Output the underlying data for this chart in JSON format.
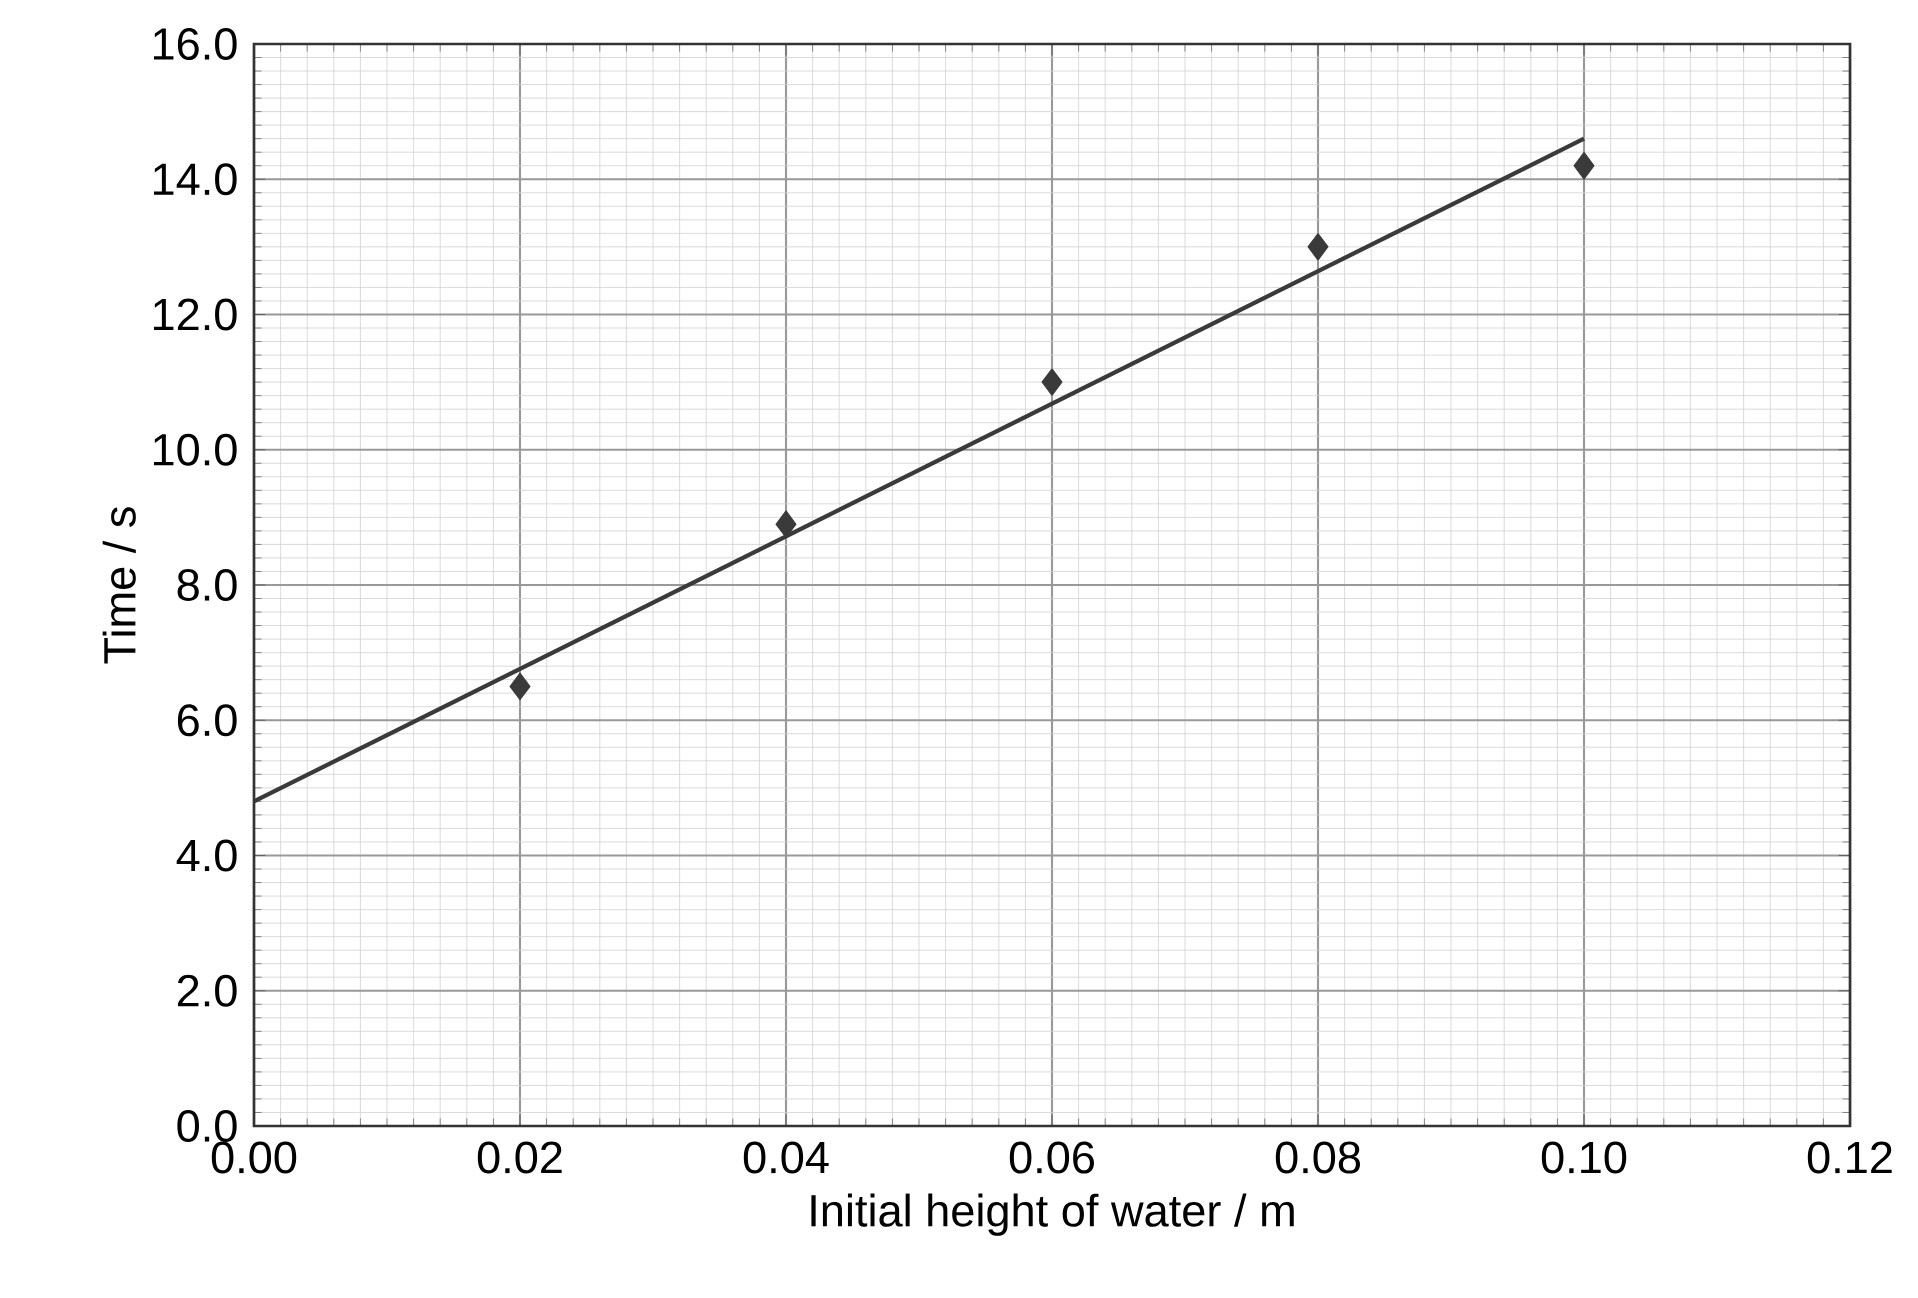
{
  "chart_data": {
    "type": "scatter",
    "xlabel": "Initial height of water / m",
    "ylabel": "Time / s",
    "series": [
      {
        "color": "#3a3a3a",
        "x": [
          0.02,
          0.04,
          0.06,
          0.08,
          0.1
        ],
        "values": [
          6.5,
          8.9,
          11.0,
          13.0,
          14.2
        ],
        "marker": "diamond"
      },
      {
        "type": "line",
        "color": "#3a3a3a",
        "x": [
          0.0,
          0.1
        ],
        "values": [
          4.8,
          14.6
        ],
        "marker": "none",
        "line_style": "solid"
      }
    ],
    "xlim": [
      0,
      0.12
    ],
    "ylim": [
      0,
      16
    ],
    "xticks": [
      {
        "value": 0,
        "label": "0.00"
      },
      {
        "value": 0.02,
        "label": "0.02"
      },
      {
        "value": 0.04,
        "label": "0.04"
      },
      {
        "value": 0.06,
        "label": "0.06"
      },
      {
        "value": 0.08,
        "label": "0.08"
      },
      {
        "value": 0.1,
        "label": "0.10"
      },
      {
        "value": 0.12,
        "label": "0.12"
      }
    ],
    "yticks": [
      {
        "value": 0,
        "label": "0.0"
      },
      {
        "value": 2,
        "label": "2.0"
      },
      {
        "value": 4,
        "label": "4.0"
      },
      {
        "value": 6,
        "label": "6.0"
      },
      {
        "value": 8,
        "label": "8.0"
      },
      {
        "value": 10,
        "label": "10.0"
      },
      {
        "value": 12,
        "label": "12.0"
      },
      {
        "value": 14,
        "label": "14.0"
      },
      {
        "value": 16,
        "label": "16.0"
      }
    ],
    "grid": true
  }
}
